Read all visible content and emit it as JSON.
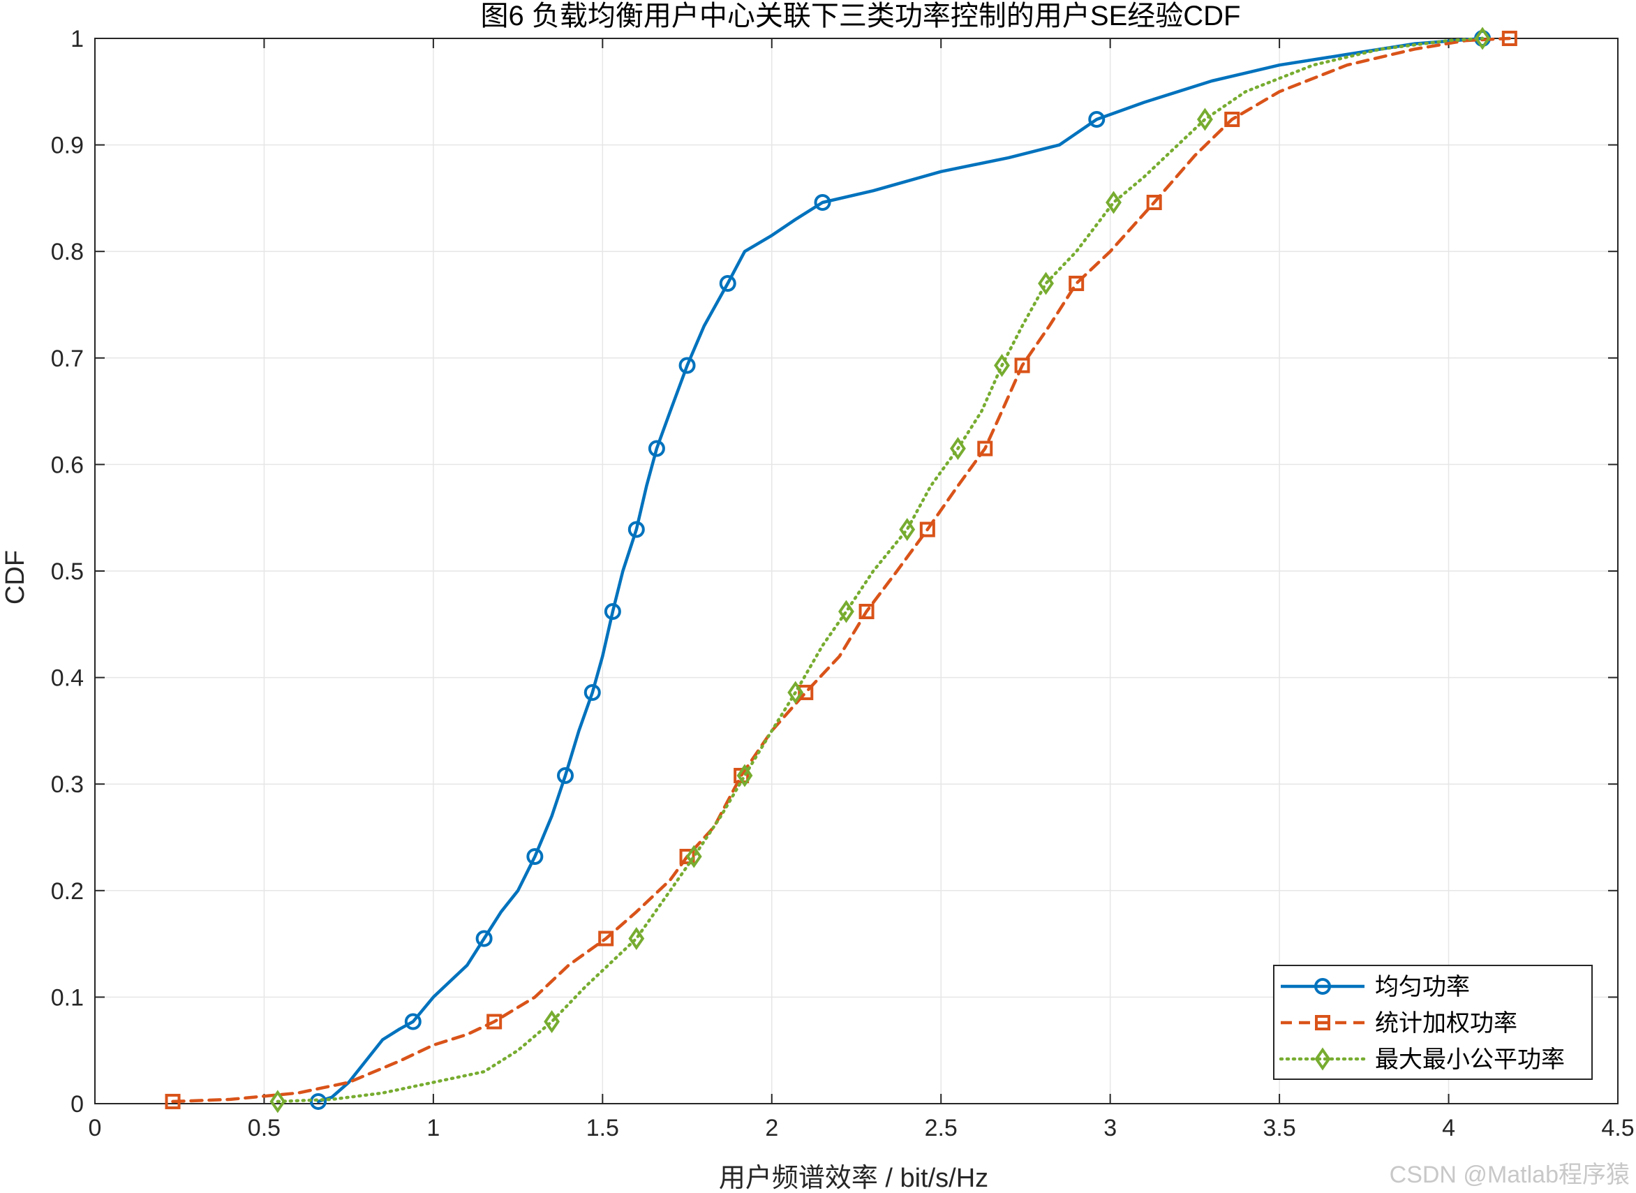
{
  "chart_data": {
    "type": "line",
    "title": "图6 负载均衡用户中心关联下三类功率控制的用户SE经验CDF",
    "xlabel": "用户频谱效率 / bit/s/Hz",
    "ylabel": "CDF",
    "xlim": [
      0,
      4.5
    ],
    "ylim": [
      0,
      1
    ],
    "xticks": [
      0,
      0.5,
      1,
      1.5,
      2,
      2.5,
      3,
      3.5,
      4,
      4.5
    ],
    "xtick_labels": [
      "0",
      "0.5",
      "1",
      "1.5",
      "2",
      "2.5",
      "3",
      "3.5",
      "4",
      "4.5"
    ],
    "yticks": [
      0,
      0.1,
      0.2,
      0.3,
      0.4,
      0.5,
      0.6,
      0.7,
      0.8,
      0.9,
      1
    ],
    "ytick_labels": [
      "0",
      "0.1",
      "0.2",
      "0.3",
      "0.4",
      "0.5",
      "0.6",
      "0.7",
      "0.8",
      "0.9",
      "1"
    ],
    "grid": true,
    "legend_position": "bottom-right",
    "series": [
      {
        "name": "均匀功率",
        "color": "#0072BD",
        "line_style": "solid",
        "marker": "circle",
        "x": [
          0.66,
          0.7,
          0.75,
          0.8,
          0.85,
          0.9,
          0.94,
          1.0,
          1.05,
          1.1,
          1.15,
          1.2,
          1.25,
          1.3,
          1.35,
          1.39,
          1.43,
          1.47,
          1.5,
          1.53,
          1.56,
          1.6,
          1.63,
          1.66,
          1.7,
          1.75,
          1.8,
          1.87,
          1.92,
          2.0,
          2.07,
          2.15,
          2.3,
          2.5,
          2.7,
          2.85,
          2.96,
          3.1,
          3.3,
          3.5,
          3.7,
          3.9,
          4.1
        ],
        "y": [
          0.002,
          0.006,
          0.02,
          0.04,
          0.06,
          0.07,
          0.077,
          0.1,
          0.115,
          0.13,
          0.155,
          0.18,
          0.2,
          0.232,
          0.27,
          0.308,
          0.35,
          0.386,
          0.42,
          0.462,
          0.5,
          0.539,
          0.58,
          0.615,
          0.65,
          0.693,
          0.73,
          0.77,
          0.8,
          0.815,
          0.83,
          0.846,
          0.857,
          0.875,
          0.888,
          0.9,
          0.924,
          0.94,
          0.96,
          0.975,
          0.985,
          0.995,
          1.0
        ],
        "marker_x": [
          0.66,
          0.94,
          1.15,
          1.3,
          1.39,
          1.47,
          1.53,
          1.6,
          1.66,
          1.75,
          1.87,
          2.15,
          2.96,
          4.1
        ],
        "marker_y": [
          0.002,
          0.077,
          0.155,
          0.232,
          0.308,
          0.386,
          0.462,
          0.539,
          0.615,
          0.693,
          0.77,
          0.846,
          0.924,
          1.0
        ]
      },
      {
        "name": "统计加权功率",
        "color": "#D95319",
        "line_style": "dashed",
        "marker": "square",
        "x": [
          0.23,
          0.4,
          0.6,
          0.75,
          0.9,
          1.0,
          1.1,
          1.18,
          1.3,
          1.4,
          1.51,
          1.6,
          1.7,
          1.75,
          1.83,
          1.91,
          2.0,
          2.1,
          2.2,
          2.28,
          2.37,
          2.46,
          2.55,
          2.63,
          2.68,
          2.74,
          2.82,
          2.9,
          3.0,
          3.13,
          3.25,
          3.36,
          3.5,
          3.7,
          3.9,
          4.05,
          4.18
        ],
        "y": [
          0.002,
          0.004,
          0.01,
          0.02,
          0.04,
          0.055,
          0.065,
          0.077,
          0.1,
          0.13,
          0.155,
          0.18,
          0.21,
          0.232,
          0.26,
          0.308,
          0.35,
          0.386,
          0.42,
          0.462,
          0.5,
          0.539,
          0.58,
          0.615,
          0.65,
          0.693,
          0.73,
          0.77,
          0.8,
          0.846,
          0.89,
          0.924,
          0.95,
          0.975,
          0.99,
          0.998,
          1.0
        ],
        "marker_x": [
          0.23,
          1.18,
          1.51,
          1.75,
          1.91,
          2.1,
          2.28,
          2.46,
          2.63,
          2.74,
          2.9,
          3.13,
          3.36,
          4.18
        ],
        "marker_y": [
          0.002,
          0.077,
          0.155,
          0.232,
          0.308,
          0.386,
          0.462,
          0.539,
          0.615,
          0.693,
          0.77,
          0.846,
          0.924,
          1.0
        ]
      },
      {
        "name": "最大最小公平功率",
        "color": "#77AC30",
        "line_style": "dotted",
        "marker": "diamond",
        "x": [
          0.54,
          0.7,
          0.85,
          1.0,
          1.15,
          1.25,
          1.35,
          1.45,
          1.5,
          1.6,
          1.7,
          1.77,
          1.85,
          1.92,
          2.0,
          2.07,
          2.15,
          2.22,
          2.3,
          2.4,
          2.47,
          2.55,
          2.62,
          2.68,
          2.74,
          2.81,
          2.9,
          3.01,
          3.1,
          3.2,
          3.28,
          3.4,
          3.6,
          3.8,
          4.0,
          4.1
        ],
        "y": [
          0.002,
          0.004,
          0.01,
          0.02,
          0.03,
          0.05,
          0.077,
          0.11,
          0.125,
          0.155,
          0.2,
          0.232,
          0.27,
          0.308,
          0.35,
          0.386,
          0.43,
          0.462,
          0.5,
          0.539,
          0.58,
          0.615,
          0.65,
          0.693,
          0.73,
          0.77,
          0.8,
          0.846,
          0.87,
          0.9,
          0.924,
          0.95,
          0.975,
          0.99,
          0.998,
          1.0
        ],
        "marker_x": [
          0.54,
          1.35,
          1.6,
          1.77,
          1.92,
          2.07,
          2.22,
          2.4,
          2.55,
          2.68,
          2.81,
          3.01,
          3.28,
          4.1
        ],
        "marker_y": [
          0.002,
          0.077,
          0.155,
          0.232,
          0.308,
          0.386,
          0.462,
          0.539,
          0.615,
          0.693,
          0.77,
          0.846,
          0.924,
          1.0
        ]
      }
    ]
  },
  "watermark": "CSDN @Matlab程序猿"
}
